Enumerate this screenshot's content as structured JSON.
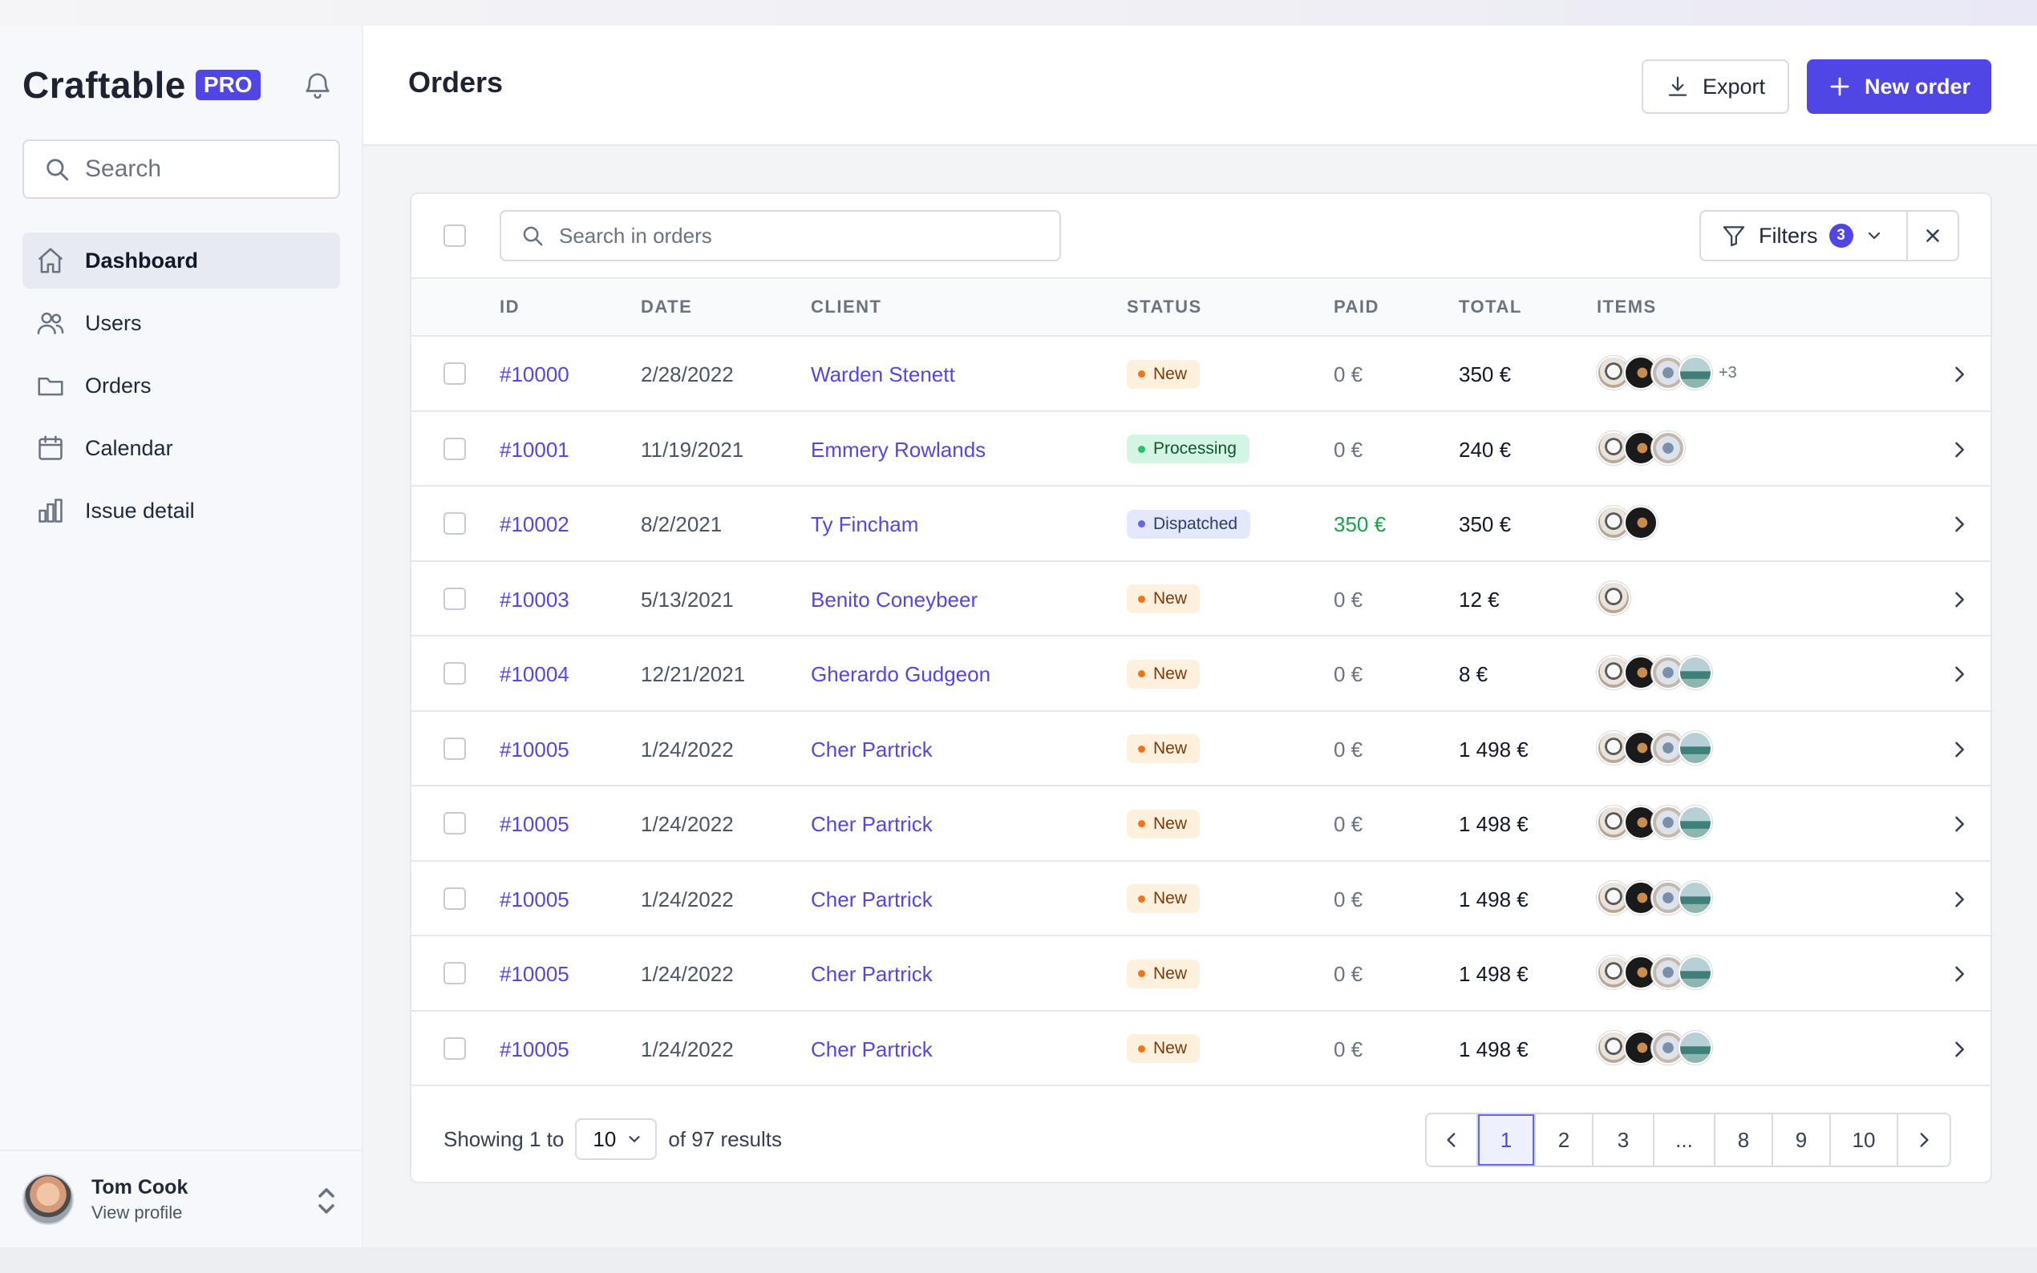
{
  "app": {
    "name": "Craftable",
    "badge": "PRO"
  },
  "sidebar": {
    "search_placeholder": "Search",
    "items": [
      {
        "label": "Dashboard",
        "icon": "home-icon",
        "active": true
      },
      {
        "label": "Users",
        "icon": "users-icon",
        "active": false
      },
      {
        "label": "Orders",
        "icon": "folder-icon",
        "active": false
      },
      {
        "label": "Calendar",
        "icon": "calendar-icon",
        "active": false
      },
      {
        "label": "Issue detail",
        "icon": "chart-bar-icon",
        "active": false
      }
    ],
    "profile": {
      "name": "Tom Cook",
      "sub": "View profile"
    }
  },
  "header": {
    "title": "Orders",
    "export_label": "Export",
    "new_label": "New order"
  },
  "toolbar": {
    "search_placeholder": "Search in orders",
    "filters_label": "Filters",
    "filters_count": "3"
  },
  "table": {
    "columns": [
      "ID",
      "DATE",
      "CLIENT",
      "STATUS",
      "PAID",
      "TOTAL",
      "ITEMS"
    ],
    "rows": [
      {
        "id": "#10000",
        "date": "2/28/2022",
        "client": "Warden Stenett",
        "status": "New",
        "status_kind": "new",
        "paid": "0 €",
        "paid_positive": false,
        "total": "350 €",
        "items": 4,
        "more": "+3"
      },
      {
        "id": "#10001",
        "date": "11/19/2021",
        "client": "Emmery Rowlands",
        "status": "Processing",
        "status_kind": "processing",
        "paid": "0 €",
        "paid_positive": false,
        "total": "240 €",
        "items": 3,
        "more": ""
      },
      {
        "id": "#10002",
        "date": "8/2/2021",
        "client": "Ty Fincham",
        "status": "Dispatched",
        "status_kind": "dispatched",
        "paid": "350 €",
        "paid_positive": true,
        "total": "350 €",
        "items": 2,
        "more": ""
      },
      {
        "id": "#10003",
        "date": "5/13/2021",
        "client": "Benito Coneybeer",
        "status": "New",
        "status_kind": "new",
        "paid": "0 €",
        "paid_positive": false,
        "total": "12 €",
        "items": 1,
        "more": ""
      },
      {
        "id": "#10004",
        "date": "12/21/2021",
        "client": "Gherardo Gudgeon",
        "status": "New",
        "status_kind": "new",
        "paid": "0 €",
        "paid_positive": false,
        "total": "8 €",
        "items": 4,
        "more": ""
      },
      {
        "id": "#10005",
        "date": "1/24/2022",
        "client": "Cher Partrick",
        "status": "New",
        "status_kind": "new",
        "paid": "0 €",
        "paid_positive": false,
        "total": "1 498 €",
        "items": 4,
        "more": ""
      },
      {
        "id": "#10005",
        "date": "1/24/2022",
        "client": "Cher Partrick",
        "status": "New",
        "status_kind": "new",
        "paid": "0 €",
        "paid_positive": false,
        "total": "1 498 €",
        "items": 4,
        "more": ""
      },
      {
        "id": "#10005",
        "date": "1/24/2022",
        "client": "Cher Partrick",
        "status": "New",
        "status_kind": "new",
        "paid": "0 €",
        "paid_positive": false,
        "total": "1 498 €",
        "items": 4,
        "more": ""
      },
      {
        "id": "#10005",
        "date": "1/24/2022",
        "client": "Cher Partrick",
        "status": "New",
        "status_kind": "new",
        "paid": "0 €",
        "paid_positive": false,
        "total": "1 498 €",
        "items": 4,
        "more": ""
      },
      {
        "id": "#10005",
        "date": "1/24/2022",
        "client": "Cher Partrick",
        "status": "New",
        "status_kind": "new",
        "paid": "0 €",
        "paid_positive": false,
        "total": "1 498 €",
        "items": 4,
        "more": ""
      }
    ]
  },
  "pagination": {
    "showing_prefix": "Showing",
    "range_start": "1",
    "to_label": "to",
    "per_page": "10",
    "of_label": "of",
    "total": "97",
    "results_label": "results",
    "pages": [
      "1",
      "2",
      "3",
      "...",
      "8",
      "9",
      "10"
    ],
    "current": "1"
  },
  "colors": {
    "accent": "#4f46e5",
    "link": "#5546e0",
    "paid_positive": "#16a34a"
  }
}
